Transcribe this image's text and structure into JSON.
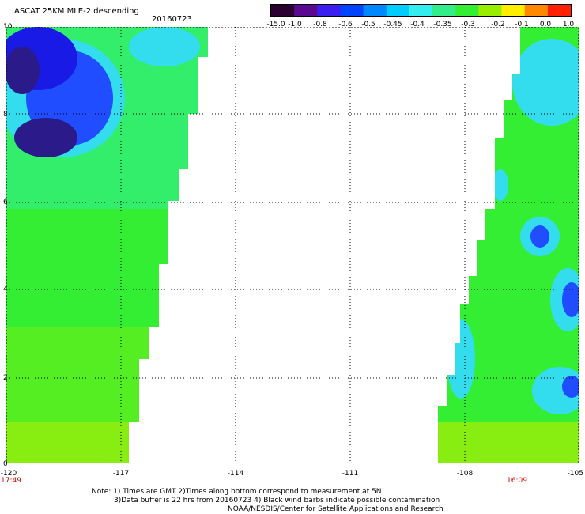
{
  "header": {
    "title": "ASCAT 25KM MLE-2 descending",
    "date": "20160723"
  },
  "colorbar": {
    "labels": [
      "-15.0",
      "-1.0",
      "-0.8",
      "-0.6",
      "-0.5",
      "-0.45",
      "-0.4",
      "-0.35",
      "-0.3",
      "-0.2",
      "-0.1",
      "0.0",
      "1.0"
    ],
    "colors": [
      "#2a0030",
      "#5a0a8f",
      "#3b1ef0",
      "#0044ff",
      "#0088ff",
      "#00ccff",
      "#33eeee",
      "#33ee88",
      "#33ee33",
      "#99ee00",
      "#ffee00",
      "#ff8800",
      "#ff2200"
    ]
  },
  "map": {
    "x_ticks": [
      "-120",
      "-117",
      "-114",
      "-111",
      "-108",
      "-105"
    ],
    "y_ticks": [
      "10",
      "8",
      "6",
      "4",
      "2",
      "0"
    ],
    "lon_range": [
      -120,
      -105
    ],
    "lat_range": [
      0,
      10
    ],
    "swaths": [
      {
        "name": "west",
        "time": "17:49"
      },
      {
        "name": "east",
        "time": "16:09"
      }
    ],
    "colors": {
      "deep_blue": "#1a1ae6",
      "blue": "#1f4dff",
      "cyan": "#33ddee",
      "teal": "#33ee99",
      "green": "#33ee33",
      "lime": "#88ee11",
      "dark_purple": "#2a1a8a"
    }
  },
  "notes": {
    "line1": "Note: 1) Times are GMT 2)Times along bottom correspond to measurement at 5N",
    "line2": "3)Data buffer is 22 hrs from 20160723 4) Black wind barbs indicate possible contamination",
    "line3": "NOAA/NESDIS/Center for Satellite Applications and Research"
  }
}
